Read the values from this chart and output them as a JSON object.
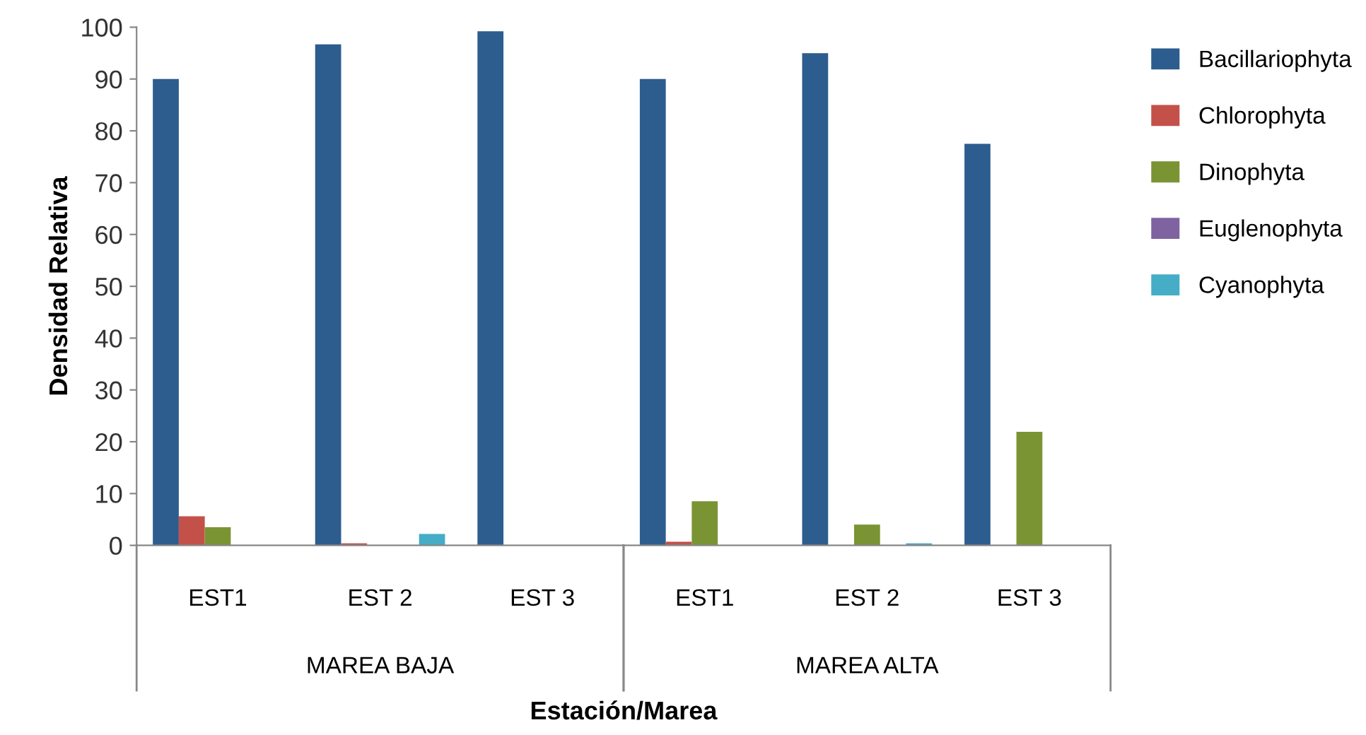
{
  "chart_data": {
    "type": "bar",
    "xlabel": "Estación/Marea",
    "ylabel": "Densidad Relativa",
    "categories": [
      "EST1",
      "EST 2",
      "EST 3",
      "EST1",
      "EST 2",
      "EST 3"
    ],
    "annotations": [
      "MAREA BAJA",
      "MAREA ALTA"
    ],
    "series": [
      {
        "name": "Bacillariophyta",
        "color": "#2c5d8e",
        "values": [
          90,
          96.7,
          99.2,
          90,
          95,
          77.5
        ]
      },
      {
        "name": "Chlorophyta",
        "color": "#c4504a",
        "values": [
          5.6,
          0.4,
          null,
          0.7,
          null,
          null
        ]
      },
      {
        "name": "Dinophyta",
        "color": "#7a9433",
        "values": [
          3.5,
          null,
          null,
          8.5,
          4.0,
          21.9
        ]
      },
      {
        "name": "Euglenophyta",
        "color": "#7e63a0",
        "values": [
          null,
          null,
          null,
          null,
          null,
          null
        ]
      },
      {
        "name": "Cyanophyta",
        "color": "#45adc6",
        "values": [
          null,
          2.2,
          null,
          null,
          0.4,
          null
        ]
      }
    ],
    "ylim": [
      0,
      100
    ],
    "yticks": [
      0,
      10,
      20,
      30,
      40,
      50,
      60,
      70,
      80,
      90,
      100
    ],
    "grid": false,
    "legend": "right"
  }
}
